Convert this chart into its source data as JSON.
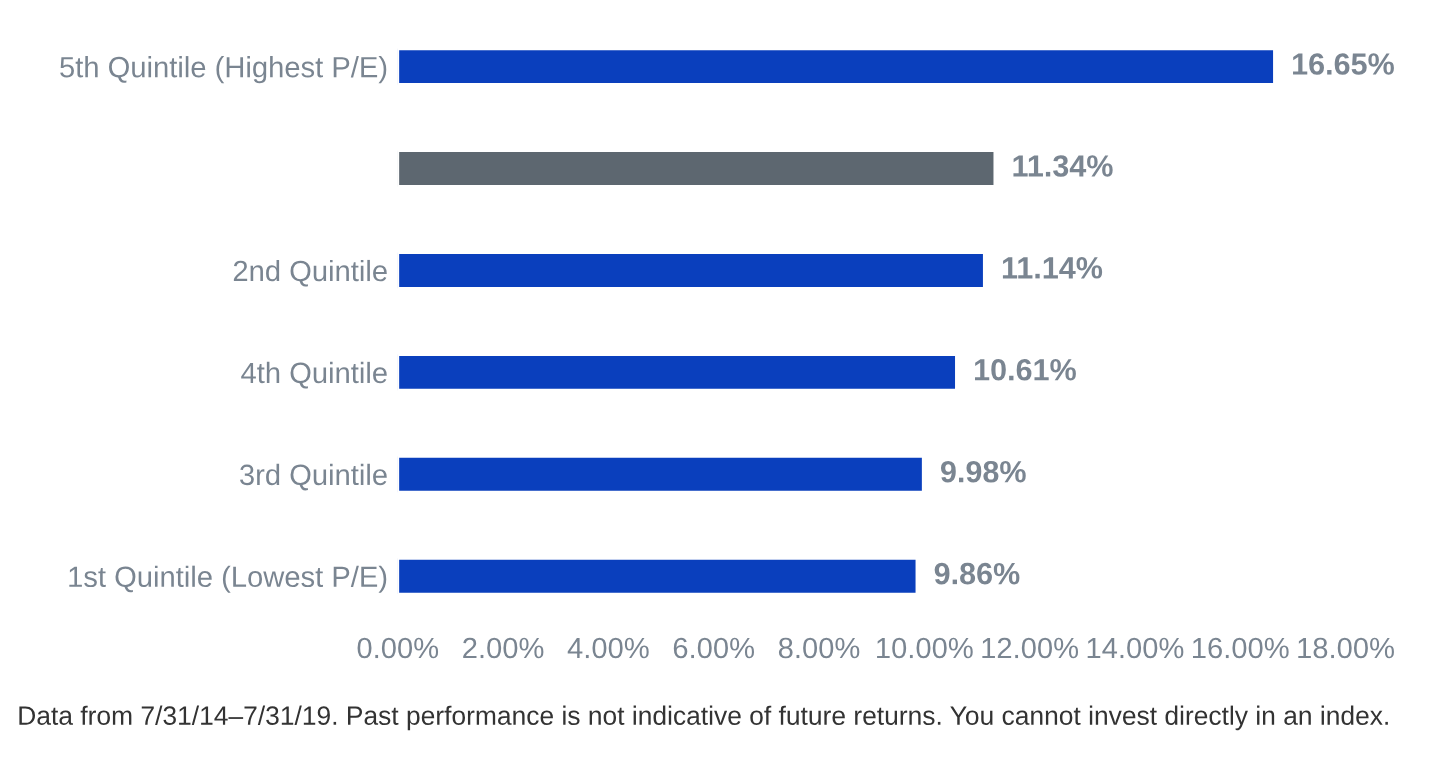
{
  "chart_data": {
    "type": "bar",
    "orientation": "horizontal",
    "categories": [
      "5th Quintile (Highest P/E)",
      null,
      "2nd Quintile",
      "4th Quintile",
      "3rd Quintile",
      "1st Quintile (Lowest P/E)"
    ],
    "values": [
      16.65,
      11.34,
      11.14,
      10.61,
      9.98,
      9.86
    ],
    "colors": [
      "#0a3fbd",
      "#5d6770",
      "#0a3fbd",
      "#0a3fbd",
      "#0a3fbd",
      "#0a3fbd"
    ],
    "value_labels": [
      "16.65%",
      "11.34%",
      "11.14%",
      "10.61%",
      "9.98%",
      "9.86%"
    ],
    "xlim": [
      0,
      18
    ],
    "xticks": [
      {
        "value": 0,
        "label": "0.00%"
      },
      {
        "value": 2,
        "label": "2.00%"
      },
      {
        "value": 4,
        "label": "4.00%"
      },
      {
        "value": 6,
        "label": "6.00%"
      },
      {
        "value": 8,
        "label": "8.00%"
      },
      {
        "value": 10,
        "label": "10.00%"
      },
      {
        "value": 12,
        "label": "12.00%"
      },
      {
        "value": 14,
        "label": "14.00%"
      },
      {
        "value": 16,
        "label": "16.00%"
      },
      {
        "value": 18,
        "label": "18.00%"
      }
    ],
    "grid": false,
    "legend": false,
    "annotations": [
      "Data from 7/31/14–7/31/19. Past performance is not indicative of future returns. You cannot invest directly in an index."
    ]
  }
}
